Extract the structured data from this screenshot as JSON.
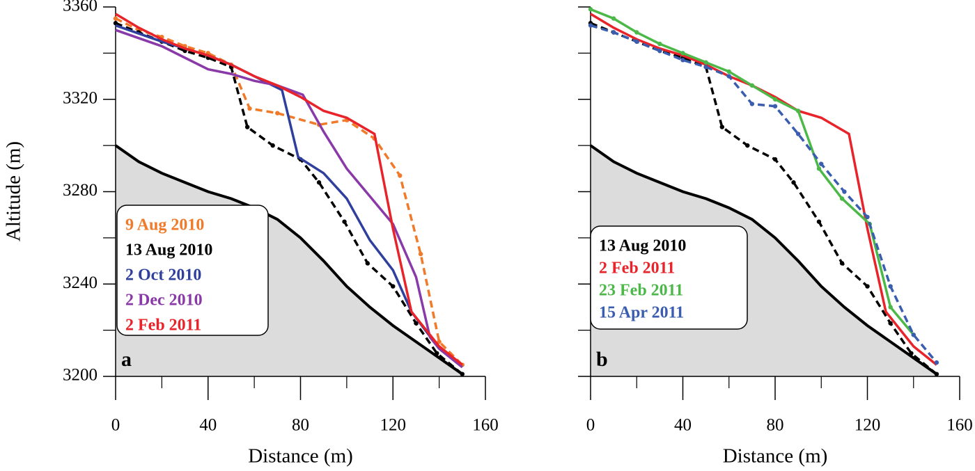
{
  "chart_data": [
    {
      "type": "line",
      "panel_label": "a",
      "ylabel": "Altitude (m)",
      "xlabel": "Distance (m)",
      "xlim": [
        0,
        160
      ],
      "ylim": [
        3200,
        3360
      ],
      "xticks": [
        0,
        40,
        80,
        120,
        160
      ],
      "xticks_minor": [
        20,
        60,
        100,
        140
      ],
      "yticks": [
        3200,
        3240,
        3280,
        3320,
        3360
      ],
      "yticks_minor": [
        3220,
        3260,
        3300,
        3340
      ],
      "show_ytick_labels": true,
      "bed": {
        "color": "#000000",
        "fill": "#dcdcdc",
        "x": [
          0,
          10,
          20,
          30,
          40,
          50,
          60,
          70,
          80,
          90,
          100,
          110,
          120,
          130,
          140,
          150
        ],
        "y": [
          3300,
          3293,
          3288,
          3284,
          3280,
          3277,
          3273,
          3268,
          3260,
          3250,
          3239,
          3230,
          3222,
          3215,
          3208,
          3201
        ]
      },
      "series": [
        {
          "name": "9 Aug 2010",
          "color": "#f07a2a",
          "style": "dashed",
          "markers": true,
          "x": [
            0,
            10,
            20,
            30,
            40,
            50,
            58,
            70,
            88,
            100,
            112,
            123,
            132,
            140,
            150
          ],
          "values": [
            3355,
            3350,
            3347,
            3343,
            3340,
            3335,
            3316,
            3314,
            3309,
            3311,
            3303,
            3287,
            3253,
            3215,
            3205
          ]
        },
        {
          "name": "13 Aug 2010",
          "color": "#000000",
          "style": "dashed",
          "markers": true,
          "x": [
            0,
            10,
            20,
            30,
            40,
            50,
            57,
            68,
            80,
            88,
            99,
            109,
            120,
            130,
            139,
            150
          ],
          "values": [
            3353,
            3349,
            3345,
            3341,
            3338,
            3334,
            3308,
            3300,
            3294,
            3284,
            3267,
            3249,
            3239,
            3223,
            3210,
            3201
          ]
        },
        {
          "name": "2 Oct 2010",
          "color": "#2e3f9e",
          "style": "solid",
          "markers": false,
          "x": [
            0,
            20,
            40,
            50,
            60,
            72,
            79,
            90,
            100,
            110,
            120,
            128,
            140,
            150
          ],
          "values": [
            3352,
            3345,
            3339,
            3335,
            3330,
            3324,
            3295,
            3288,
            3277,
            3259,
            3246,
            3228,
            3212,
            3204
          ]
        },
        {
          "name": "2 Dec 2010",
          "color": "#8a3aa8",
          "style": "solid",
          "markers": false,
          "x": [
            0,
            20,
            40,
            50,
            60,
            70,
            81,
            90,
            100,
            110,
            120,
            130,
            136,
            140,
            150
          ],
          "values": [
            3350,
            3343,
            3333,
            3331,
            3328,
            3326,
            3322,
            3306,
            3290,
            3278,
            3266,
            3243,
            3217,
            3212,
            3204
          ]
        },
        {
          "name": "2 Feb 2011",
          "color": "#e8232a",
          "style": "solid",
          "markers": false,
          "x": [
            0,
            10,
            20,
            30,
            40,
            50,
            60,
            70,
            80,
            90,
            100,
            112,
            120,
            128,
            140,
            150
          ],
          "values": [
            3357,
            3351,
            3346,
            3342,
            3339,
            3335,
            3330,
            3326,
            3321,
            3315,
            3312,
            3305,
            3264,
            3228,
            3213,
            3205
          ]
        }
      ]
    },
    {
      "type": "line",
      "panel_label": "b",
      "xlabel": "Distance (m)",
      "xlim": [
        0,
        160
      ],
      "ylim": [
        3200,
        3360
      ],
      "xticks": [
        0,
        40,
        80,
        120,
        160
      ],
      "xticks_minor": [
        20,
        60,
        100,
        140
      ],
      "yticks": [
        3200,
        3240,
        3280,
        3320,
        3360
      ],
      "yticks_minor": [
        3220,
        3260,
        3300,
        3340
      ],
      "show_ytick_labels": false,
      "bed": {
        "color": "#000000",
        "fill": "#dcdcdc",
        "x": [
          0,
          10,
          20,
          30,
          40,
          50,
          60,
          70,
          80,
          90,
          100,
          110,
          120,
          130,
          140,
          150
        ],
        "y": [
          3300,
          3293,
          3288,
          3284,
          3280,
          3277,
          3273,
          3268,
          3260,
          3250,
          3239,
          3230,
          3222,
          3215,
          3208,
          3201
        ]
      },
      "series": [
        {
          "name": "13 Aug 2010",
          "color": "#000000",
          "style": "dashed",
          "markers": true,
          "x": [
            0,
            10,
            20,
            30,
            40,
            50,
            57,
            68,
            80,
            88,
            99,
            109,
            120,
            130,
            139,
            150
          ],
          "values": [
            3353,
            3349,
            3345,
            3341,
            3338,
            3334,
            3308,
            3300,
            3294,
            3284,
            3267,
            3249,
            3239,
            3223,
            3210,
            3201
          ]
        },
        {
          "name": "2 Feb 2011",
          "color": "#e8232a",
          "style": "solid",
          "markers": false,
          "x": [
            0,
            10,
            20,
            30,
            40,
            50,
            60,
            70,
            80,
            90,
            100,
            112,
            120,
            128,
            140,
            150
          ],
          "values": [
            3357,
            3351,
            3346,
            3342,
            3339,
            3335,
            3330,
            3326,
            3321,
            3315,
            3312,
            3305,
            3264,
            3228,
            3213,
            3205
          ]
        },
        {
          "name": "23 Feb 2011",
          "color": "#4cb848",
          "style": "solid",
          "markers": true,
          "x": [
            0,
            10,
            20,
            30,
            40,
            50,
            60,
            70,
            80,
            90,
            99,
            109,
            121,
            130,
            140
          ],
          "values": [
            3359,
            3355,
            3349,
            3344,
            3340,
            3336,
            3332,
            3326,
            3320,
            3315,
            3290,
            3277,
            3266,
            3230,
            3218
          ]
        },
        {
          "name": "15 Apr 2011",
          "color": "#3a5db0",
          "style": "dashed",
          "markers": true,
          "x": [
            0,
            10,
            20,
            30,
            40,
            50,
            60,
            70,
            80,
            90,
            100,
            110,
            120,
            130,
            140,
            150
          ],
          "values": [
            3352,
            3349,
            3345,
            3341,
            3337,
            3334,
            3330,
            3318,
            3317,
            3305,
            3292,
            3280,
            3269,
            3239,
            3218,
            3206
          ]
        }
      ]
    }
  ]
}
